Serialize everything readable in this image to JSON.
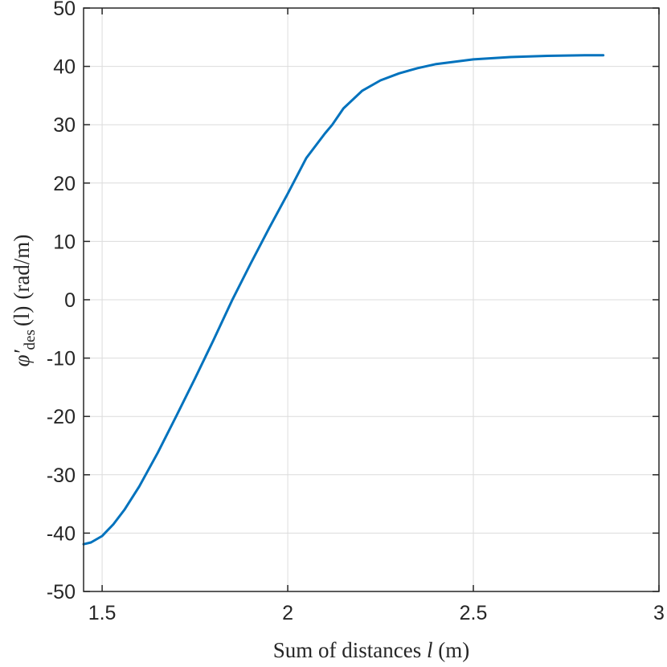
{
  "chart_data": {
    "type": "line",
    "xlabel": {
      "prefix": "Sum of distances ",
      "var": "l",
      "suffix": " (m)"
    },
    "ylabel": {
      "symbol": "φ′",
      "sub": "des",
      "arg": "(l)",
      "unit": "(rad/m)"
    },
    "xlim": [
      1.45,
      3.0
    ],
    "ylim": [
      -50,
      50
    ],
    "xticks": [
      1.5,
      2,
      2.5,
      3
    ],
    "xtick_labels": [
      "1.5",
      "2",
      "2.5",
      "3"
    ],
    "yticks": [
      -50,
      -40,
      -30,
      -20,
      -10,
      0,
      10,
      20,
      30,
      40,
      50
    ],
    "ytick_labels": [
      "-50",
      "-40",
      "-30",
      "-20",
      "-10",
      "0",
      "10",
      "20",
      "30",
      "40",
      "50"
    ],
    "grid": true,
    "colors": {
      "line": "#0072bd",
      "grid": "#dcdcdc",
      "axis": "#262626"
    },
    "series": [
      {
        "x": [
          1.45,
          1.47,
          1.5,
          1.53,
          1.56,
          1.6,
          1.65,
          1.7,
          1.75,
          1.8,
          1.85,
          1.9,
          1.95,
          2.0,
          2.05,
          2.1,
          2.12,
          2.15,
          2.2,
          2.25,
          2.3,
          2.35,
          2.4,
          2.5,
          2.6,
          2.7,
          2.8,
          2.85
        ],
        "y": [
          -41.9,
          -41.6,
          -40.5,
          -38.5,
          -36.0,
          -32.0,
          -26.2,
          -19.9,
          -13.5,
          -6.9,
          -0.1,
          6.2,
          12.3,
          18.2,
          24.3,
          28.5,
          30.0,
          32.8,
          35.8,
          37.6,
          38.8,
          39.7,
          40.4,
          41.2,
          41.6,
          41.8,
          41.9,
          41.9
        ]
      }
    ]
  }
}
